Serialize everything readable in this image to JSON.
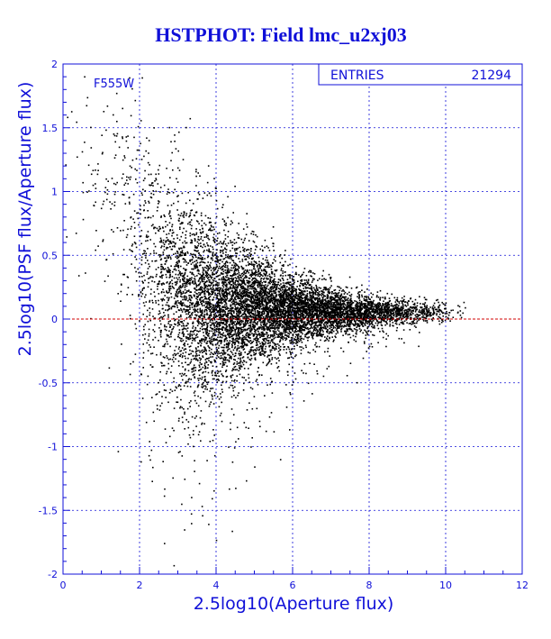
{
  "chart_data": {
    "type": "scatter",
    "title": "HSTPHOT: Field lmc_u2xj03",
    "xlabel": "2.5log10(Aperture flux)",
    "ylabel": "2.5log10(PSF flux/Aperture flux)",
    "xlim": [
      0,
      12
    ],
    "ylim": [
      -2,
      2
    ],
    "x_ticks": [
      0,
      2,
      4,
      6,
      8,
      10,
      12
    ],
    "y_ticks": [
      -2,
      -1.5,
      -1,
      -0.5,
      0,
      0.5,
      1,
      1.5,
      2
    ],
    "grid": true,
    "reference_line": {
      "y": 0,
      "color": "#d00000",
      "style": "dashed"
    },
    "filter_label": "F555W",
    "stats_box": {
      "label": "ENTRIES",
      "value": "21294",
      "position": "top-right"
    },
    "series": [
      {
        "color": "#000000",
        "density_profile": [
          {
            "x": 0.25,
            "y_center": 1.3,
            "y_spread": 0.6,
            "weight": 1
          },
          {
            "x": 0.75,
            "y_center": 1.25,
            "y_spread": 0.45,
            "weight": 3
          },
          {
            "x": 1.25,
            "y_center": 1.05,
            "y_spread": 0.4,
            "weight": 5
          },
          {
            "x": 1.75,
            "y_center": 0.75,
            "y_spread": 0.45,
            "weight": 10
          },
          {
            "x": 2.25,
            "y_center": 0.4,
            "y_spread": 0.5,
            "weight": 22
          },
          {
            "x": 2.75,
            "y_center": 0.25,
            "y_spread": 0.45,
            "weight": 40
          },
          {
            "x": 3.25,
            "y_center": 0.17,
            "y_spread": 0.4,
            "weight": 60
          },
          {
            "x": 3.75,
            "y_center": 0.14,
            "y_spread": 0.34,
            "weight": 75
          },
          {
            "x": 4.25,
            "y_center": 0.12,
            "y_spread": 0.28,
            "weight": 85
          },
          {
            "x": 4.75,
            "y_center": 0.11,
            "y_spread": 0.23,
            "weight": 88
          },
          {
            "x": 5.25,
            "y_center": 0.1,
            "y_spread": 0.19,
            "weight": 85
          },
          {
            "x": 5.75,
            "y_center": 0.09,
            "y_spread": 0.15,
            "weight": 80
          },
          {
            "x": 6.25,
            "y_center": 0.08,
            "y_spread": 0.12,
            "weight": 72
          },
          {
            "x": 6.75,
            "y_center": 0.07,
            "y_spread": 0.1,
            "weight": 62
          },
          {
            "x": 7.25,
            "y_center": 0.07,
            "y_spread": 0.08,
            "weight": 52
          },
          {
            "x": 7.75,
            "y_center": 0.06,
            "y_spread": 0.07,
            "weight": 42
          },
          {
            "x": 8.25,
            "y_center": 0.06,
            "y_spread": 0.06,
            "weight": 32
          },
          {
            "x": 8.75,
            "y_center": 0.06,
            "y_spread": 0.05,
            "weight": 24
          },
          {
            "x": 9.25,
            "y_center": 0.06,
            "y_spread": 0.045,
            "weight": 15
          },
          {
            "x": 9.75,
            "y_center": 0.06,
            "y_spread": 0.04,
            "weight": 8
          },
          {
            "x": 10.25,
            "y_center": 0.06,
            "y_spread": 0.03,
            "weight": 2
          }
        ]
      }
    ]
  }
}
